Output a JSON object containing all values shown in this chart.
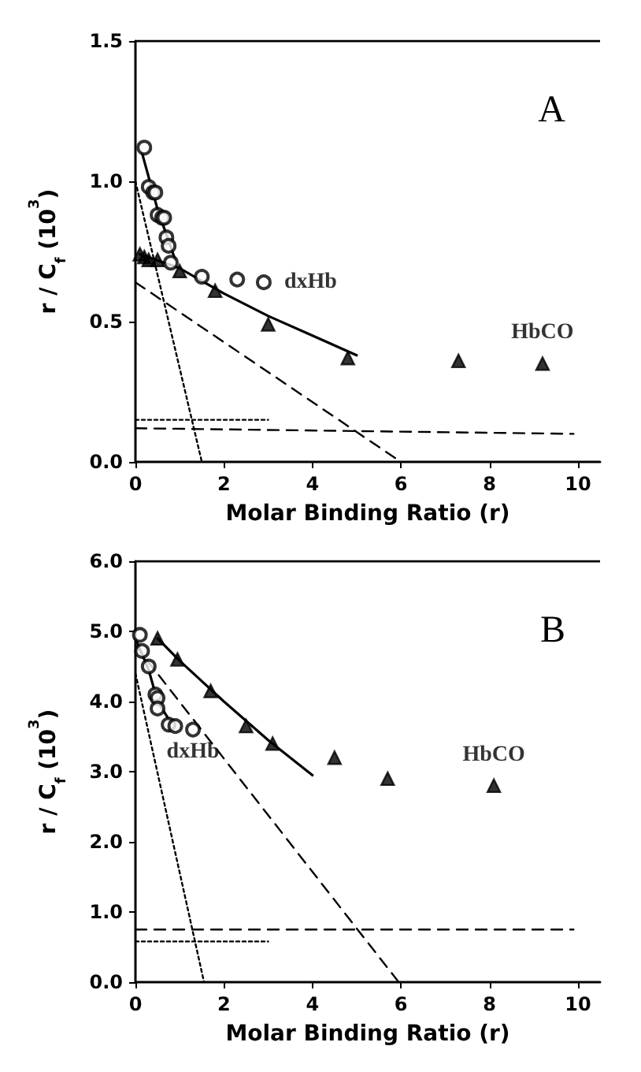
{
  "chart_data": [
    {
      "type": "scatter",
      "xlabel": "Molar Binding Ratio (r)",
      "ylabel": "r / C$_{f}$ (10$^{3}$)",
      "annotations": [
        "A"
      ],
      "xlim": [
        0,
        10.5
      ],
      "xticks": [
        0,
        2,
        4,
        6,
        8,
        10
      ],
      "ylim": [
        0,
        1.5
      ],
      "yticks": [
        {
          "value": 0,
          "label": "0.0"
        },
        {
          "value": 0.5,
          "label": "0.5"
        },
        {
          "value": 1,
          "label": "1.0"
        },
        {
          "value": 1.5,
          "label": "1.5"
        }
      ],
      "grid": false,
      "legend": false,
      "series": [
        {
          "name": "dxHb",
          "marker": "circle",
          "color": "#000000",
          "x": [
            0.2,
            0.3,
            0.4,
            0.45,
            0.5,
            0.6,
            0.65,
            0.7,
            0.75,
            0.8,
            1.5,
            2.3,
            2.9
          ],
          "values": [
            1.12,
            0.98,
            0.96,
            0.96,
            0.88,
            0.87,
            0.87,
            0.8,
            0.77,
            0.71,
            0.66,
            0.65,
            0.64
          ]
        },
        {
          "name": "HbCO",
          "marker": "triangle",
          "color": "#000000",
          "x": [
            0.1,
            0.2,
            0.3,
            0.5,
            1.0,
            1.8,
            3.0,
            4.8,
            7.3,
            9.2
          ],
          "values": [
            0.74,
            0.73,
            0.72,
            0.72,
            0.68,
            0.61,
            0.49,
            0.37,
            0.36,
            0.35
          ]
        },
        {
          "type": "line",
          "marker": "none",
          "line_style": "solid",
          "color": "#000000",
          "x": [
            0.15,
            0.5,
            0.9
          ],
          "values": [
            1.1,
            0.9,
            0.72
          ]
        },
        {
          "type": "line",
          "marker": "none",
          "line_style": "solid",
          "color": "#000000",
          "x": [
            0.1,
            1,
            2,
            3,
            4,
            5
          ],
          "values": [
            0.74,
            0.69,
            0.6,
            0.52,
            0.45,
            0.38
          ]
        },
        {
          "type": "line",
          "marker": "none",
          "line_style": "dotted",
          "color": "#000000",
          "x": [
            0,
            1.5
          ],
          "values": [
            1.0,
            0
          ]
        },
        {
          "type": "line",
          "marker": "none",
          "line_style": "dashed",
          "color": "#000000",
          "x": [
            0,
            6
          ],
          "values": [
            0.64,
            0
          ]
        },
        {
          "type": "line",
          "marker": "none",
          "line_style": "dashed",
          "color": "#000000",
          "x": [
            0,
            9.9
          ],
          "values": [
            0.12,
            0.1
          ]
        },
        {
          "type": "line",
          "marker": "none",
          "line_style": "dotted",
          "color": "#000000",
          "x": [
            0,
            3
          ],
          "values": [
            0.15,
            0.15
          ]
        }
      ]
    },
    {
      "type": "scatter",
      "xlabel": "Molar Binding Ratio (r)",
      "ylabel": "r / C$_{f}$ (10$^{3}$)",
      "annotations": [
        "B"
      ],
      "xlim": [
        0,
        10.5
      ],
      "xticks": [
        0,
        2,
        4,
        6,
        8,
        10
      ],
      "ylim": [
        0,
        6
      ],
      "yticks": [
        {
          "value": 0,
          "label": "0.0"
        },
        {
          "value": 1,
          "label": "1.0"
        },
        {
          "value": 2,
          "label": "2.0"
        },
        {
          "value": 3,
          "label": "3.0"
        },
        {
          "value": 4,
          "label": "4.0"
        },
        {
          "value": 5,
          "label": "5.0"
        },
        {
          "value": 6,
          "label": "6.0"
        }
      ],
      "grid": false,
      "legend": false,
      "series": [
        {
          "name": "dxHb",
          "marker": "circle",
          "color": "#000000",
          "x": [
            0.1,
            0.15,
            0.3,
            0.45,
            0.5,
            0.5,
            0.75,
            0.9,
            1.3
          ],
          "values": [
            4.95,
            4.72,
            4.5,
            4.1,
            4.05,
            3.9,
            3.67,
            3.65,
            3.6
          ]
        },
        {
          "name": "HbCO",
          "marker": "triangle",
          "color": "#000000",
          "x": [
            0.5,
            0.95,
            1.7,
            2.5,
            3.1,
            4.5,
            5.7,
            8.1
          ],
          "values": [
            4.9,
            4.6,
            4.15,
            3.65,
            3.4,
            3.2,
            2.9,
            2.8
          ]
        },
        {
          "type": "line",
          "marker": "none",
          "line_style": "solid",
          "color": "#000000",
          "x": [
            0,
            0.3,
            0.5,
            0.8
          ],
          "values": [
            4.9,
            4.45,
            4.0,
            3.7
          ]
        },
        {
          "type": "line",
          "marker": "none",
          "line_style": "solid",
          "color": "#000000",
          "x": [
            0.5,
            1,
            2,
            3,
            4
          ],
          "values": [
            4.9,
            4.58,
            4.0,
            3.45,
            2.95
          ]
        },
        {
          "type": "line",
          "marker": "none",
          "line_style": "dotted",
          "color": "#000000",
          "x": [
            0,
            1.55
          ],
          "values": [
            4.4,
            0
          ]
        },
        {
          "type": "line",
          "marker": "none",
          "line_style": "dashed",
          "color": "#000000",
          "x": [
            0,
            5.95
          ],
          "values": [
            4.8,
            0
          ]
        },
        {
          "type": "line",
          "marker": "none",
          "line_style": "dashed",
          "color": "#000000",
          "x": [
            0,
            9.9
          ],
          "values": [
            0.75,
            0.75
          ]
        },
        {
          "type": "line",
          "marker": "none",
          "line_style": "dotted",
          "color": "#000000",
          "x": [
            0,
            3
          ],
          "values": [
            0.58,
            0.58
          ]
        }
      ]
    }
  ]
}
